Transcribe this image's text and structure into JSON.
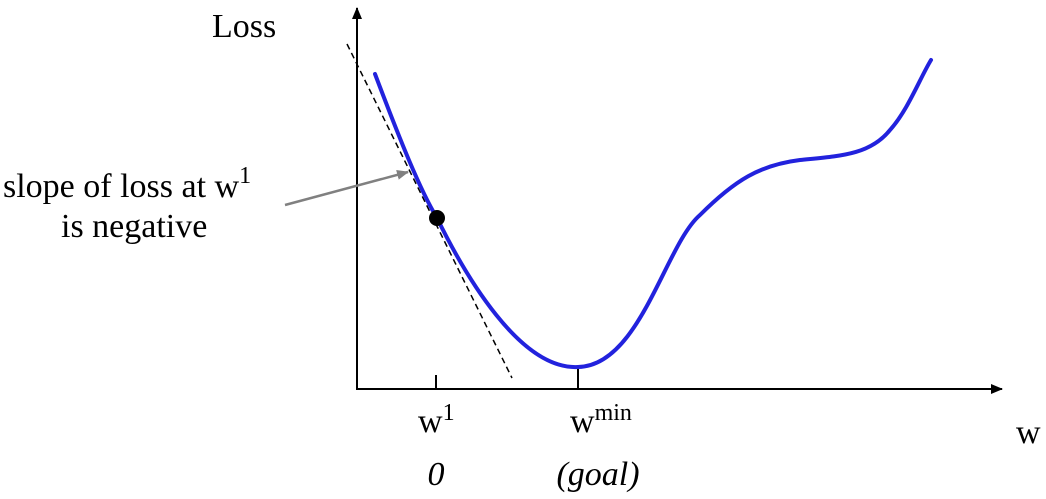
{
  "axes": {
    "y_label": "Loss",
    "x_label": "w"
  },
  "ticks": {
    "w1": {
      "base": "w",
      "sup": "1",
      "below": "0"
    },
    "wmin": {
      "base": "w",
      "sup": "min",
      "below": "(goal)"
    }
  },
  "annotation": {
    "line1_text": "slope of loss at w",
    "line1_sup": "1",
    "line2": "is negative"
  },
  "colors": {
    "curve": "#2222dd",
    "arrow": "#808080",
    "axis": "#000000",
    "tangent": "#000000",
    "point": "#000000"
  }
}
